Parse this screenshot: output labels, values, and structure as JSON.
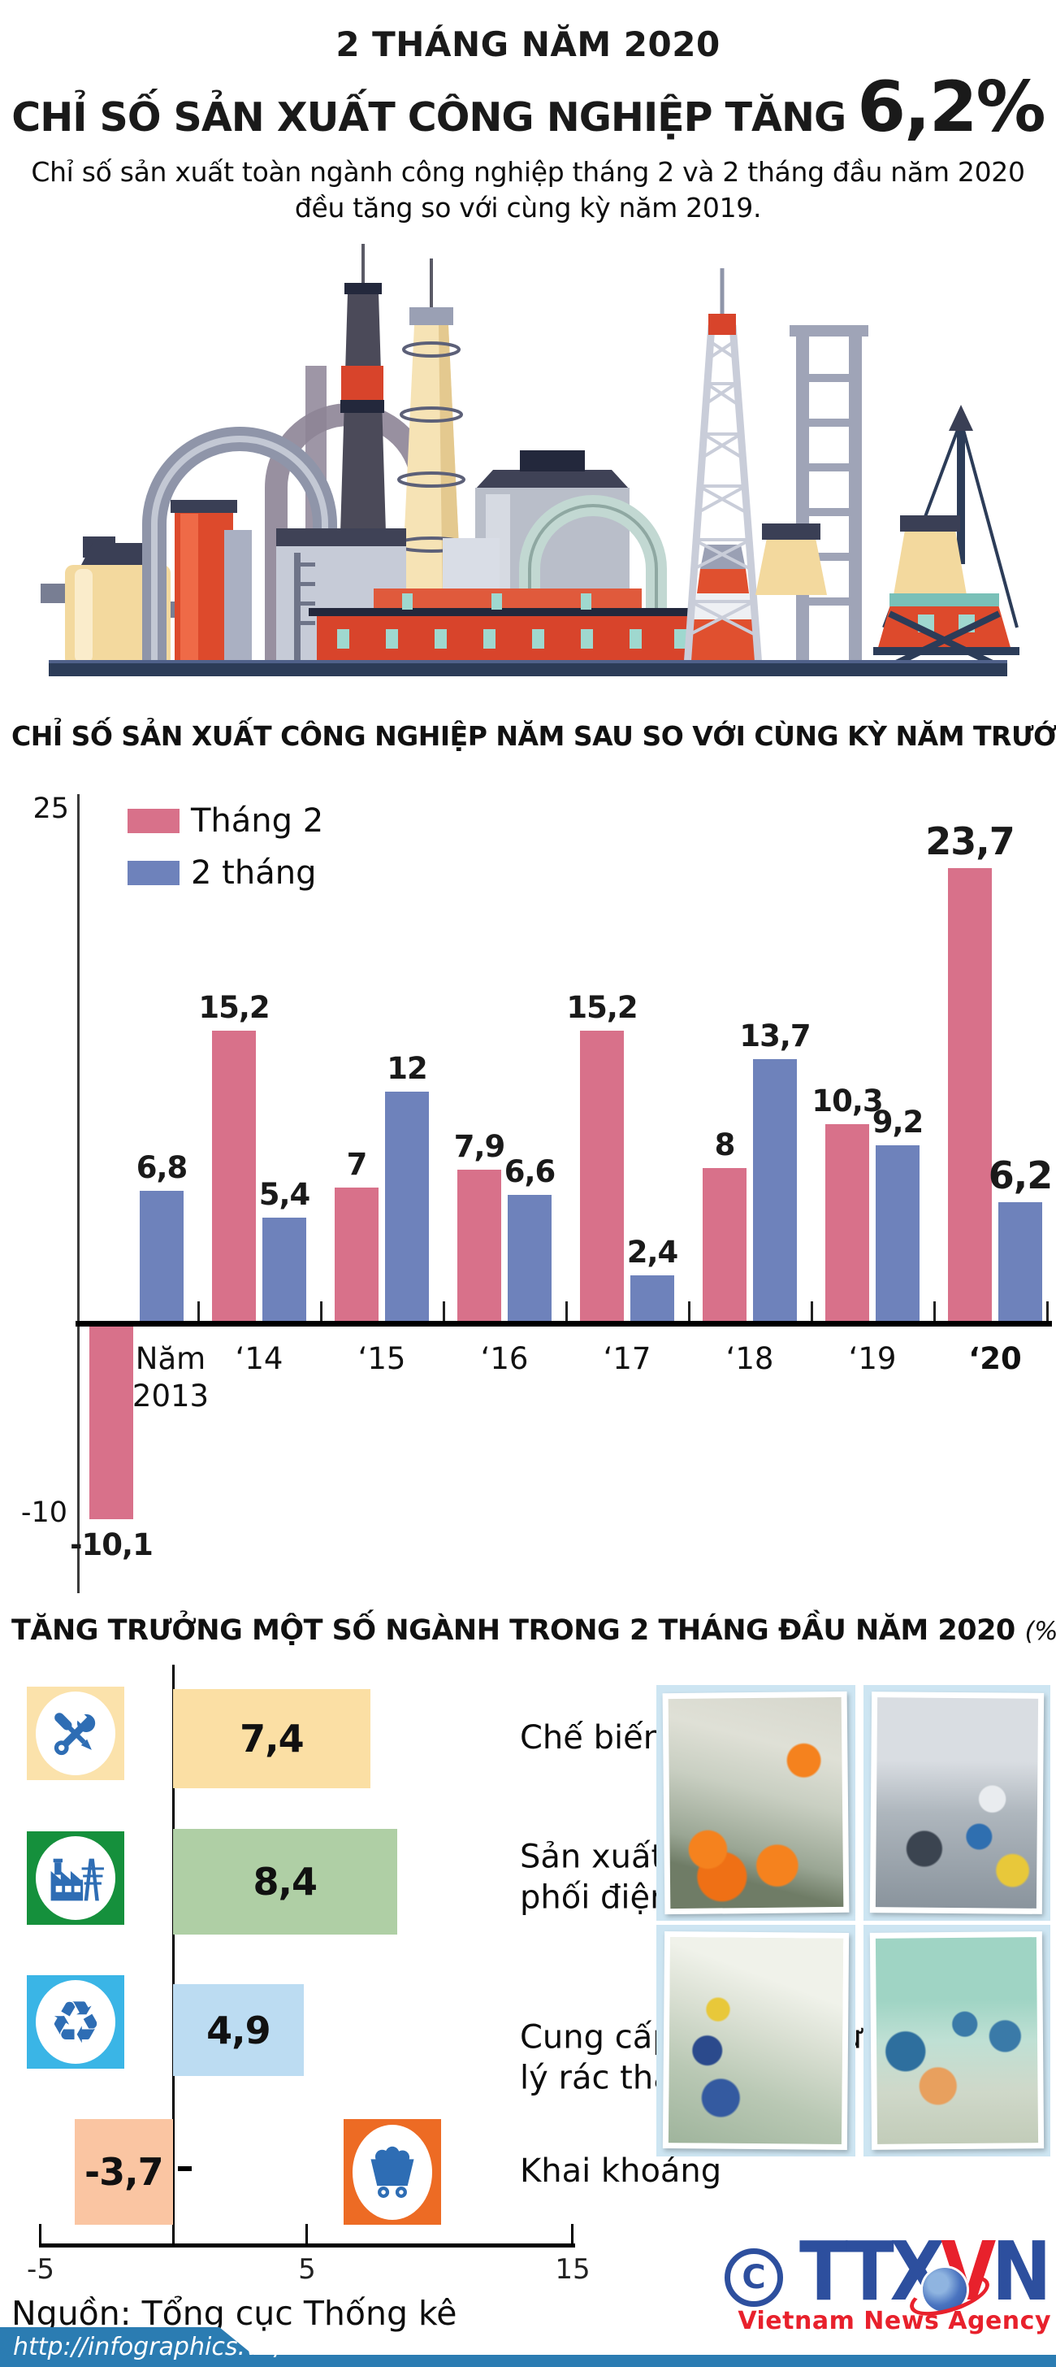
{
  "header": {
    "kicker": "2 THÁNG NĂM 2020",
    "title_prefix": "CHỈ SỐ SẢN XUẤT CÔNG NGHIỆP TĂNG",
    "title_value": "6,2%",
    "subtitle_line1": "Chỉ số sản xuất toàn ngành công nghiệp tháng 2 và 2 tháng đầu năm 2020",
    "subtitle_line2": "đều tăng so với cùng kỳ năm 2019."
  },
  "colors": {
    "accent_blue": "#2d7fb8",
    "bar_pink": "#d8718a",
    "bar_blue": "#6e82bb",
    "footer_blue": "#2b7cb2",
    "logo_blue": "#2d4f9e",
    "logo_red": "#e8212c",
    "icon_glyph_blue": "#2e6db4"
  },
  "chart1": {
    "title": "CHỈ SỐ SẢN XUẤT CÔNG NGHIỆP NĂM SAU SO VỚI CÙNG KỲ NĂM TRƯỚC",
    "title_unit": "( %)",
    "y_top_label": "25",
    "y_bottom_label": "-10",
    "legend": [
      {
        "label": "Tháng 2",
        "color": "#d8718a"
      },
      {
        "label": "2 tháng",
        "color": "#6e82bb"
      }
    ]
  },
  "chart2": {
    "title": "TĂNG TRƯỞNG MỘT SỐ NGÀNH TRONG 2 THÁNG ĐẦU NĂM 2020 ",
    "title_unit": "(%)",
    "axis_tick_labels": [
      "-5",
      "5",
      "15"
    ],
    "rows": [
      {
        "label": "Chế biến, chế tạo",
        "value_label": "7,4",
        "value": 7.4,
        "bar_color": "#fbdfa4",
        "icon": "tools-icon",
        "icon_bg": "#fbe2ab"
      },
      {
        "label": "Sản xuất và phân phối điện",
        "value_label": "8,4",
        "value": 8.4,
        "bar_color": "#afcfa5",
        "icon": "power-plant-icon",
        "icon_bg": "#15903c"
      },
      {
        "label": "Cung cấp nước và xử lý rác thải, nước thải",
        "value_label": "4,9",
        "value": 4.9,
        "bar_color": "#bcdcf2",
        "icon": "recycle-icon",
        "icon_bg": "#3ab5e6"
      },
      {
        "label": "Khai khoáng",
        "value_label": "-3,7",
        "value": -3.7,
        "bar_color": "#fac5a2",
        "icon": "mine-cart-icon",
        "icon_bg": "#ed6b24"
      }
    ]
  },
  "chart_data": [
    {
      "type": "bar",
      "title": "CHỈ SỐ SẢN XUẤT CÔNG NGHIỆP NĂM SAU SO VỚI CÙNG KỲ NĂM TRƯỚC (%)",
      "categories": [
        "Năm\n2013",
        "‘14",
        "‘15",
        "‘16",
        "‘17",
        "‘18",
        "‘19",
        "‘20"
      ],
      "series": [
        {
          "name": "Tháng 2",
          "color": "#d8718a",
          "values": [
            -10.1,
            15.2,
            7,
            7.9,
            15.2,
            8,
            10.3,
            23.7
          ],
          "labels": [
            "-10,1",
            "15,2",
            "7",
            "7,9",
            "15,2",
            "8",
            "10,3",
            "23,7"
          ]
        },
        {
          "name": "2 tháng",
          "color": "#6e82bb",
          "values": [
            6.8,
            5.4,
            12,
            6.6,
            2.4,
            13.7,
            9.2,
            6.2
          ],
          "labels": [
            "6,8",
            "5,4",
            "12",
            "6,6",
            "2,4",
            "13,7",
            "9,2",
            "6,2"
          ]
        }
      ],
      "ylabel": "%",
      "ylim": [
        -10,
        25
      ],
      "y_ticks_shown": [
        25,
        -10
      ],
      "grid": false,
      "legend_position": "top-left"
    },
    {
      "type": "bar",
      "orientation": "horizontal",
      "title": "TĂNG TRƯỞNG MỘT SỐ NGÀNH TRONG 2 THÁNG ĐẦU NĂM 2020 (%)",
      "categories": [
        "Chế biến, chế tạo",
        "Sản xuất và phân phối điện",
        "Cung cấp nước và xử lý rác thải, nước thải",
        "Khai khoáng"
      ],
      "values": [
        7.4,
        8.4,
        4.9,
        -3.7
      ],
      "labels": [
        "7,4",
        "8,4",
        "4,9",
        "-3,7"
      ],
      "xlabel": "%",
      "xlim": [
        -5,
        15
      ],
      "x_ticks": [
        -5,
        5,
        15
      ],
      "grid": false
    }
  ],
  "source": "Nguồn: Tổng cục Thống kê",
  "footer": {
    "url": "http://infographics.vn/"
  },
  "logo": {
    "copyright": "C",
    "ttx": "TTX",
    "v": "V",
    "n": "N",
    "tagline": "Vietnam News Agency"
  }
}
